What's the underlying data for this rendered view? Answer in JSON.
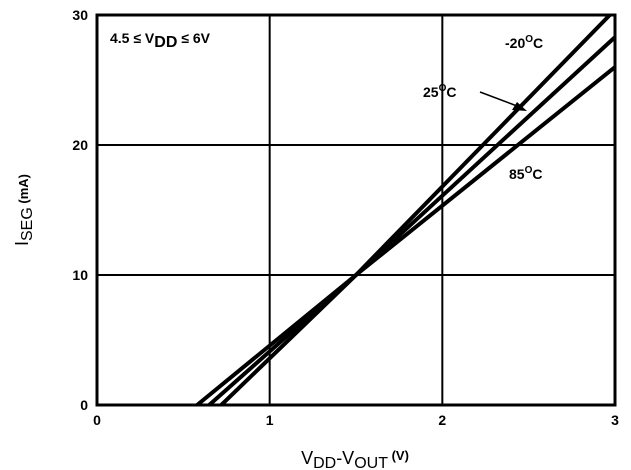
{
  "chart_data": {
    "type": "line",
    "xlim": [
      0,
      3
    ],
    "ylim": [
      0,
      30
    ],
    "x_ticks": [
      "0",
      "1",
      "2",
      "3"
    ],
    "y_ticks": [
      "0",
      "10",
      "20",
      "30"
    ],
    "grid": true,
    "xlabel": {
      "main": "V",
      "sub1": "DD",
      "dash": "-V",
      "sub2": "OUT",
      "unit": " (V)"
    },
    "ylabel": {
      "main": "I",
      "sub": "SEG",
      "unit": " (mA)"
    },
    "condition": {
      "prefix": "4.5 ≤ V",
      "sub": "DD",
      "suffix": " ≤ 6V"
    },
    "series": [
      {
        "name": {
          "value": "-20",
          "deg": "O",
          "unit": "C"
        },
        "x": [
          0.72,
          1.5,
          2.97
        ],
        "y": [
          0,
          10,
          30
        ]
      },
      {
        "name": {
          "value": "25",
          "deg": "O",
          "unit": "C"
        },
        "x": [
          0.65,
          1.5,
          3.0
        ],
        "y": [
          0,
          10,
          28.3
        ]
      },
      {
        "name": {
          "value": "85",
          "deg": "O",
          "unit": "C"
        },
        "x": [
          0.58,
          1.5,
          3.0
        ],
        "y": [
          0,
          10,
          26
        ]
      }
    ],
    "colors": {
      "line": "#000000",
      "grid": "#000000",
      "background": "#ffffff"
    }
  }
}
